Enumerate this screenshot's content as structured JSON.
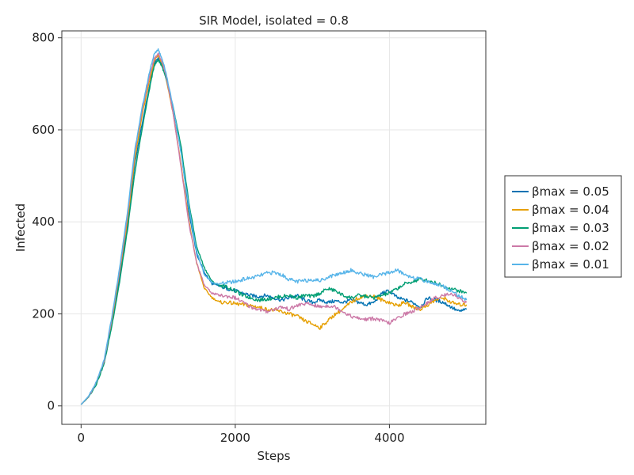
{
  "chart_data": {
    "type": "line",
    "title": "SIR Model, isolated = 0.8",
    "xlabel": "Steps",
    "ylabel": "Infected",
    "xlim": [
      -250,
      5250
    ],
    "ylim": [
      -40,
      815
    ],
    "xticks": [
      0,
      2000,
      4000
    ],
    "yticks": [
      0,
      200,
      400,
      600,
      800
    ],
    "grid": true,
    "legend_position": "right",
    "series": [
      {
        "name": "βmax = 0.05",
        "color": "#0072B2",
        "x": [
          0,
          100,
          200,
          300,
          400,
          500,
          600,
          700,
          800,
          900,
          950,
          1000,
          1050,
          1100,
          1200,
          1300,
          1400,
          1500,
          1600,
          1700,
          1800,
          1900,
          2000,
          2100,
          2200,
          2300,
          2400,
          2500,
          2600,
          2700,
          2800,
          2900,
          3000,
          3100,
          3200,
          3300,
          3400,
          3500,
          3600,
          3700,
          3800,
          3900,
          4000,
          4100,
          4200,
          4300,
          4400,
          4500,
          4600,
          4700,
          4800,
          4900,
          5000
        ],
        "y": [
          3,
          20,
          50,
          95,
          180,
          280,
          390,
          530,
          620,
          705,
          745,
          755,
          740,
          715,
          640,
          550,
          420,
          330,
          290,
          265,
          260,
          255,
          250,
          245,
          240,
          238,
          240,
          235,
          230,
          235,
          240,
          230,
          225,
          230,
          225,
          228,
          225,
          230,
          225,
          220,
          225,
          245,
          250,
          235,
          230,
          225,
          215,
          235,
          230,
          225,
          215,
          205,
          210
        ]
      },
      {
        "name": "βmax = 0.04",
        "color": "#E69F00",
        "x": [
          0,
          100,
          200,
          300,
          400,
          500,
          600,
          700,
          800,
          900,
          950,
          1000,
          1050,
          1100,
          1200,
          1300,
          1400,
          1500,
          1600,
          1700,
          1800,
          1900,
          2000,
          2100,
          2200,
          2300,
          2400,
          2500,
          2600,
          2700,
          2800,
          2900,
          3000,
          3100,
          3200,
          3300,
          3400,
          3500,
          3600,
          3700,
          3800,
          3900,
          4000,
          4100,
          4200,
          4300,
          4400,
          4500,
          4600,
          4700,
          4800,
          4900,
          5000
        ],
        "y": [
          3,
          20,
          50,
          95,
          185,
          290,
          400,
          540,
          640,
          715,
          750,
          762,
          745,
          715,
          630,
          520,
          400,
          310,
          255,
          235,
          225,
          225,
          222,
          220,
          218,
          215,
          210,
          208,
          205,
          200,
          195,
          185,
          178,
          170,
          185,
          200,
          210,
          225,
          235,
          240,
          238,
          230,
          225,
          218,
          225,
          215,
          210,
          220,
          230,
          235,
          225,
          220,
          220
        ]
      },
      {
        "name": "βmax = 0.03",
        "color": "#009E73",
        "x": [
          0,
          100,
          200,
          300,
          400,
          500,
          600,
          700,
          800,
          900,
          950,
          1000,
          1050,
          1100,
          1200,
          1300,
          1400,
          1500,
          1600,
          1700,
          1800,
          1900,
          2000,
          2100,
          2200,
          2300,
          2400,
          2500,
          2600,
          2700,
          2800,
          2900,
          3000,
          3100,
          3200,
          3300,
          3400,
          3500,
          3600,
          3700,
          3800,
          3900,
          4000,
          4100,
          4200,
          4300,
          4400,
          4500,
          4600,
          4700,
          4800,
          4900,
          5000
        ],
        "y": [
          3,
          20,
          48,
          92,
          175,
          270,
          380,
          510,
          610,
          700,
          740,
          752,
          738,
          712,
          645,
          560,
          440,
          345,
          300,
          270,
          262,
          258,
          250,
          240,
          235,
          230,
          232,
          235,
          238,
          240,
          235,
          240,
          238,
          245,
          255,
          250,
          240,
          235,
          240,
          238,
          235,
          240,
          245,
          255,
          265,
          270,
          275,
          272,
          268,
          260,
          255,
          250,
          245
        ]
      },
      {
        "name": "βmax = 0.02",
        "color": "#CC79A7",
        "x": [
          0,
          100,
          200,
          300,
          400,
          500,
          600,
          700,
          800,
          900,
          950,
          1000,
          1050,
          1100,
          1200,
          1300,
          1400,
          1500,
          1600,
          1700,
          1800,
          1900,
          2000,
          2100,
          2200,
          2300,
          2400,
          2500,
          2600,
          2700,
          2800,
          2900,
          3000,
          3100,
          3200,
          3300,
          3400,
          3500,
          3600,
          3700,
          3800,
          3900,
          4000,
          4100,
          4200,
          4300,
          4400,
          4500,
          4600,
          4700,
          4800,
          4900,
          5000
        ],
        "y": [
          3,
          21,
          52,
          98,
          190,
          295,
          410,
          555,
          650,
          725,
          755,
          765,
          748,
          720,
          630,
          515,
          395,
          310,
          262,
          245,
          240,
          238,
          235,
          225,
          215,
          210,
          205,
          210,
          215,
          210,
          218,
          222,
          220,
          215,
          218,
          215,
          205,
          195,
          190,
          188,
          190,
          185,
          180,
          190,
          200,
          205,
          215,
          225,
          235,
          240,
          245,
          235,
          225
        ]
      },
      {
        "name": "βmax = 0.01",
        "color": "#56B4E9",
        "x": [
          0,
          100,
          200,
          300,
          400,
          500,
          600,
          700,
          800,
          900,
          950,
          1000,
          1050,
          1100,
          1200,
          1300,
          1400,
          1500,
          1600,
          1700,
          1800,
          1900,
          2000,
          2100,
          2200,
          2300,
          2400,
          2500,
          2600,
          2700,
          2800,
          2900,
          3000,
          3100,
          3200,
          3300,
          3400,
          3500,
          3600,
          3700,
          3800,
          3900,
          4000,
          4100,
          4200,
          4300,
          4400,
          4500,
          4600,
          4700,
          4800,
          4900,
          5000
        ],
        "y": [
          3,
          22,
          52,
          100,
          195,
          300,
          420,
          560,
          655,
          735,
          765,
          775,
          755,
          725,
          645,
          545,
          430,
          335,
          285,
          268,
          265,
          268,
          270,
          275,
          278,
          282,
          288,
          290,
          285,
          275,
          270,
          272,
          275,
          272,
          280,
          285,
          290,
          295,
          288,
          285,
          280,
          285,
          290,
          295,
          285,
          280,
          275,
          270,
          265,
          260,
          250,
          240,
          230
        ]
      }
    ]
  }
}
